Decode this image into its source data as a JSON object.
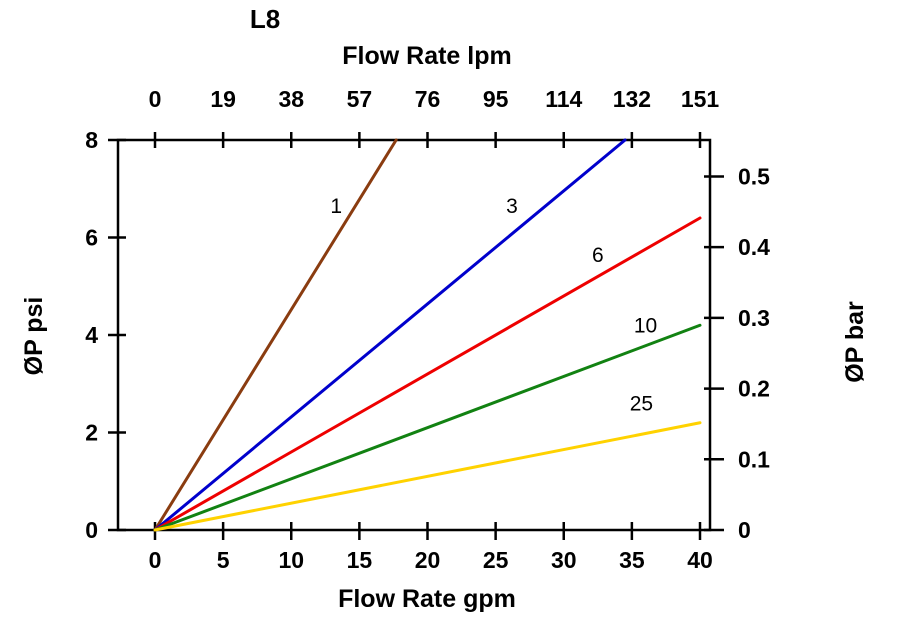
{
  "chart_data": {
    "type": "line",
    "title": "L8",
    "top_axis": {
      "label": "Flow Rate lpm",
      "ticks": [
        "0",
        "19",
        "38",
        "57",
        "76",
        "95",
        "114",
        "132",
        "151"
      ]
    },
    "bottom_axis": {
      "label": "Flow Rate gpm",
      "ticks": [
        "0",
        "5",
        "10",
        "15",
        "20",
        "25",
        "30",
        "35",
        "40"
      ],
      "range": [
        0,
        40
      ]
    },
    "left_axis": {
      "label": "ØP psi",
      "ticks": [
        "0",
        "2",
        "4",
        "6",
        "8"
      ],
      "range": [
        0,
        8
      ]
    },
    "right_axis": {
      "label": "ØP bar",
      "ticks": [
        "0",
        "0.1",
        "0.2",
        "0.3",
        "0.4",
        "0.5"
      ],
      "psi_per_bar": 14.5038
    },
    "grid": "off",
    "series": [
      {
        "name": "1",
        "color": "#8a3c10",
        "points": [
          [
            0,
            0
          ],
          [
            17.7,
            8
          ]
        ],
        "label_pos": [
          13.3,
          6.5
        ]
      },
      {
        "name": "3",
        "color": "#0000cc",
        "points": [
          [
            0,
            0
          ],
          [
            34.5,
            8
          ]
        ],
        "label_pos": [
          26.2,
          6.5
        ]
      },
      {
        "name": "6",
        "color": "#ee0000",
        "points": [
          [
            0,
            0
          ],
          [
            40,
            6.4
          ]
        ],
        "label_pos": [
          32.5,
          5.5
        ]
      },
      {
        "name": "10",
        "color": "#128212",
        "points": [
          [
            0,
            0
          ],
          [
            40,
            4.2
          ]
        ],
        "label_pos": [
          36.0,
          4.05
        ]
      },
      {
        "name": "25",
        "color": "#ffd200",
        "points": [
          [
            0,
            0
          ],
          [
            40,
            2.2
          ]
        ],
        "label_pos": [
          35.7,
          2.45
        ]
      }
    ]
  }
}
